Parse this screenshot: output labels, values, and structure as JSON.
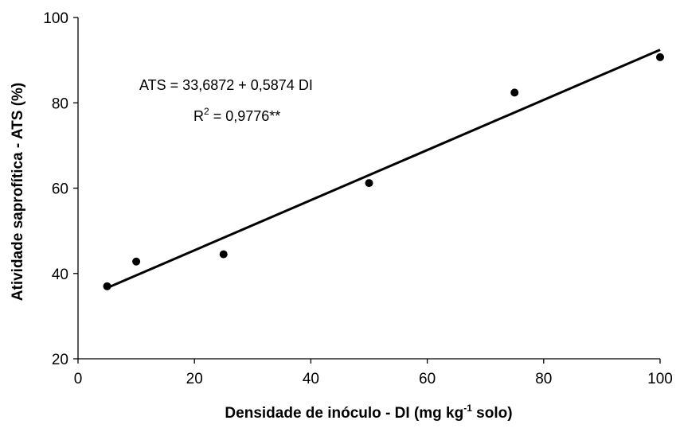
{
  "chart_data": {
    "type": "scatter",
    "x": [
      5,
      10,
      25,
      50,
      75,
      100
    ],
    "y": [
      37.0,
      42.8,
      44.5,
      61.2,
      82.4,
      90.7
    ],
    "xlim": [
      0,
      100
    ],
    "ylim": [
      20,
      100
    ],
    "xticks": [
      0,
      20,
      40,
      60,
      80,
      100
    ],
    "yticks": [
      20,
      40,
      60,
      80,
      100
    ],
    "xlabel": {
      "main": "Densidade de inóculo - DI (mg kg",
      "sup": "-1",
      "tail": " solo)"
    },
    "ylabel": "Atividade saprofítica - ATS (%)",
    "trendline": {
      "intercept": 33.6872,
      "slope": 0.5874,
      "x_range": [
        5,
        100
      ]
    },
    "annotation": {
      "equation": "ATS = 33,6872 + 0,5874 DI",
      "r2_prefix": "R",
      "r2_sup": "2",
      "r2_value": " = 0,9776**"
    },
    "grid": false,
    "legend": "none",
    "colors": {
      "marker": "#000000",
      "line": "#000000",
      "axis": "#000000"
    }
  }
}
